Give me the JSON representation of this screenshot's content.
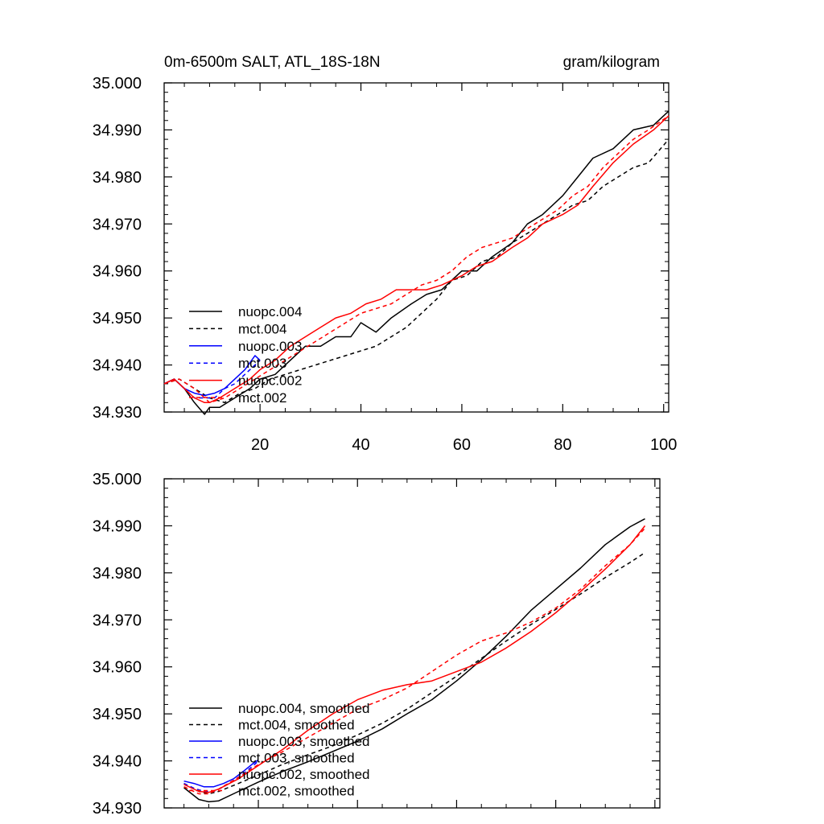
{
  "chart_data": [
    {
      "type": "line",
      "title": "0m-6500m SALT, ATL_18S-18N",
      "units": "gram/kilogram",
      "xlim": [
        1,
        101
      ],
      "ylim": [
        34.93,
        35.0
      ],
      "x_ticks": [
        20,
        40,
        60,
        80,
        100
      ],
      "y_ticks": [
        "35.000",
        "34.990",
        "34.980",
        "34.970",
        "34.960",
        "34.950",
        "34.940",
        "34.930"
      ],
      "grid": false,
      "legend_position": "lower-left",
      "series": [
        {
          "name": "nuopc.004",
          "color": "#000000",
          "dash": "solid",
          "x": [
            1,
            3,
            5,
            7,
            9,
            10,
            12,
            15,
            18,
            20,
            23,
            26,
            29,
            32,
            35,
            38,
            40,
            43,
            46,
            50,
            53,
            56,
            60,
            63,
            66,
            70,
            73,
            76,
            80,
            83,
            86,
            90,
            94,
            98,
            101
          ],
          "y": [
            34.936,
            34.937,
            34.935,
            34.932,
            34.9295,
            34.931,
            34.931,
            34.933,
            34.935,
            34.937,
            34.938,
            34.941,
            34.944,
            34.944,
            34.946,
            34.946,
            34.949,
            34.947,
            34.95,
            34.953,
            34.955,
            34.956,
            34.96,
            34.96,
            34.963,
            34.966,
            34.97,
            34.972,
            34.976,
            34.98,
            34.984,
            34.986,
            34.99,
            34.991,
            34.994
          ]
        },
        {
          "name": "mct.004",
          "color": "#000000",
          "dash": "dashed",
          "x": [
            1,
            4,
            7,
            10,
            13,
            16,
            19,
            22,
            25,
            28,
            31,
            34,
            37,
            40,
            43,
            46,
            49,
            52,
            55,
            58,
            61,
            64,
            67,
            70,
            73,
            76,
            79,
            82,
            85,
            88,
            91,
            94,
            97,
            101
          ],
          "y": [
            34.936,
            34.937,
            34.935,
            34.933,
            34.932,
            34.934,
            34.935,
            34.937,
            34.938,
            34.939,
            34.94,
            34.941,
            34.942,
            34.943,
            34.944,
            34.946,
            34.948,
            34.951,
            34.954,
            34.958,
            34.959,
            34.962,
            34.963,
            34.966,
            34.968,
            34.97,
            34.972,
            34.974,
            34.975,
            34.978,
            34.98,
            34.982,
            34.983,
            34.988
          ]
        },
        {
          "name": "nuopc.003",
          "color": "#0000ff",
          "dash": "solid",
          "x": [
            1,
            3,
            5,
            7,
            9,
            11,
            13,
            15,
            17,
            19,
            20
          ],
          "y": [
            34.936,
            34.937,
            34.935,
            34.934,
            34.9335,
            34.934,
            34.935,
            34.937,
            34.939,
            34.942,
            34.941
          ]
        },
        {
          "name": "mct.003",
          "color": "#0000ff",
          "dash": "dashed",
          "x": [
            1,
            3,
            5,
            7,
            9,
            11,
            13,
            15,
            17,
            19,
            20
          ],
          "y": [
            34.936,
            34.937,
            34.935,
            34.933,
            34.933,
            34.933,
            34.935,
            34.936,
            34.938,
            34.94,
            34.941
          ]
        },
        {
          "name": "nuopc.002",
          "color": "#ff0000",
          "dash": "solid",
          "x": [
            1,
            3,
            5,
            7,
            9,
            10,
            12,
            15,
            18,
            20,
            23,
            26,
            29,
            32,
            35,
            38,
            41,
            44,
            47,
            50,
            53,
            56,
            60,
            63,
            66,
            70,
            73,
            76,
            80,
            83,
            86,
            90,
            94,
            98,
            101
          ],
          "y": [
            34.936,
            34.937,
            34.935,
            34.933,
            34.932,
            34.932,
            34.933,
            34.935,
            34.937,
            34.939,
            34.941,
            34.944,
            34.946,
            34.948,
            34.95,
            34.951,
            34.953,
            34.954,
            34.956,
            34.956,
            34.956,
            34.957,
            34.959,
            34.961,
            34.962,
            34.965,
            34.967,
            34.97,
            34.972,
            34.974,
            34.978,
            34.983,
            34.987,
            34.99,
            34.993
          ]
        },
        {
          "name": "mct.002",
          "color": "#ff0000",
          "dash": "dashed",
          "x": [
            1,
            4,
            7,
            10,
            13,
            16,
            19,
            22,
            25,
            28,
            31,
            34,
            37,
            40,
            43,
            46,
            49,
            52,
            55,
            58,
            61,
            64,
            67,
            70,
            73,
            76,
            79,
            82,
            85,
            88,
            91,
            94,
            97,
            101
          ],
          "y": [
            34.936,
            34.937,
            34.935,
            34.932,
            34.933,
            34.935,
            34.937,
            34.939,
            34.941,
            34.943,
            34.945,
            34.947,
            34.949,
            34.951,
            34.952,
            34.953,
            34.955,
            34.957,
            34.958,
            34.96,
            34.963,
            34.965,
            34.966,
            34.967,
            34.969,
            34.971,
            34.973,
            34.976,
            34.978,
            34.982,
            34.985,
            34.988,
            34.99,
            34.993
          ]
        }
      ]
    },
    {
      "type": "line",
      "xlim": [
        1,
        101
      ],
      "ylim": [
        34.93,
        35.0
      ],
      "y_ticks": [
        "35.000",
        "34.990",
        "34.980",
        "34.970",
        "34.960",
        "34.950",
        "34.940",
        "34.930"
      ],
      "grid": false,
      "legend_position": "lower-left",
      "series": [
        {
          "name": "nuopc.004, smoothed",
          "color": "#000000",
          "dash": "solid",
          "x": [
            5,
            8,
            10,
            12,
            16,
            20,
            25,
            30,
            35,
            40,
            45,
            50,
            55,
            60,
            65,
            70,
            75,
            80,
            85,
            90,
            95,
            98
          ],
          "y": [
            34.9343,
            34.9318,
            34.9313,
            34.9315,
            34.9335,
            34.9355,
            34.9378,
            34.9398,
            34.942,
            34.9442,
            34.9468,
            34.95,
            34.953,
            34.957,
            34.9615,
            34.9665,
            34.972,
            34.9765,
            34.981,
            34.986,
            34.9898,
            34.9915
          ]
        },
        {
          "name": "mct.004, smoothed",
          "color": "#000000",
          "dash": "dashed",
          "x": [
            5,
            8,
            10,
            12,
            16,
            20,
            25,
            30,
            35,
            40,
            45,
            50,
            55,
            60,
            65,
            70,
            75,
            80,
            85,
            90,
            95,
            98
          ],
          "y": [
            34.9352,
            34.9335,
            34.933,
            34.9335,
            34.9352,
            34.937,
            34.9393,
            34.9413,
            34.9432,
            34.9455,
            34.948,
            34.951,
            34.9545,
            34.958,
            34.9618,
            34.9655,
            34.969,
            34.9722,
            34.9755,
            34.979,
            34.9822,
            34.9843
          ]
        },
        {
          "name": "nuopc.003, smoothed",
          "color": "#0000ff",
          "dash": "solid",
          "x": [
            5,
            7,
            9,
            11,
            13,
            15,
            17,
            19,
            20
          ],
          "y": [
            34.9357,
            34.9352,
            34.9345,
            34.9345,
            34.9352,
            34.9362,
            34.9378,
            34.9395,
            34.9402
          ]
        },
        {
          "name": "mct.003, smoothed",
          "color": "#0000ff",
          "dash": "dashed",
          "x": [
            5,
            7,
            9,
            11,
            13,
            15,
            17,
            19,
            20
          ],
          "y": [
            34.9352,
            34.9342,
            34.9335,
            34.9335,
            34.9345,
            34.9358,
            34.9373,
            34.939,
            34.94
          ]
        },
        {
          "name": "nuopc.002, smoothed",
          "color": "#ff0000",
          "dash": "solid",
          "x": [
            5,
            8,
            10,
            12,
            16,
            20,
            25,
            30,
            35,
            40,
            45,
            50,
            55,
            60,
            65,
            70,
            75,
            80,
            85,
            90,
            95,
            98
          ],
          "y": [
            34.935,
            34.9335,
            34.9333,
            34.934,
            34.9362,
            34.939,
            34.9425,
            34.9465,
            34.95,
            34.953,
            34.955,
            34.9562,
            34.957,
            34.959,
            34.961,
            34.964,
            34.9675,
            34.9715,
            34.976,
            34.9808,
            34.986,
            34.99
          ]
        },
        {
          "name": "mct.002, smoothed",
          "color": "#ff0000",
          "dash": "dashed",
          "x": [
            5,
            8,
            10,
            12,
            16,
            20,
            25,
            30,
            35,
            40,
            45,
            50,
            55,
            60,
            65,
            70,
            75,
            80,
            85,
            90,
            95,
            98
          ],
          "y": [
            34.9345,
            34.933,
            34.933,
            34.934,
            34.9365,
            34.9392,
            34.942,
            34.945,
            34.948,
            34.951,
            34.953,
            34.9555,
            34.959,
            34.9625,
            34.9655,
            34.9672,
            34.9695,
            34.9725,
            34.9765,
            34.9815,
            34.986,
            34.9895
          ]
        }
      ]
    }
  ]
}
